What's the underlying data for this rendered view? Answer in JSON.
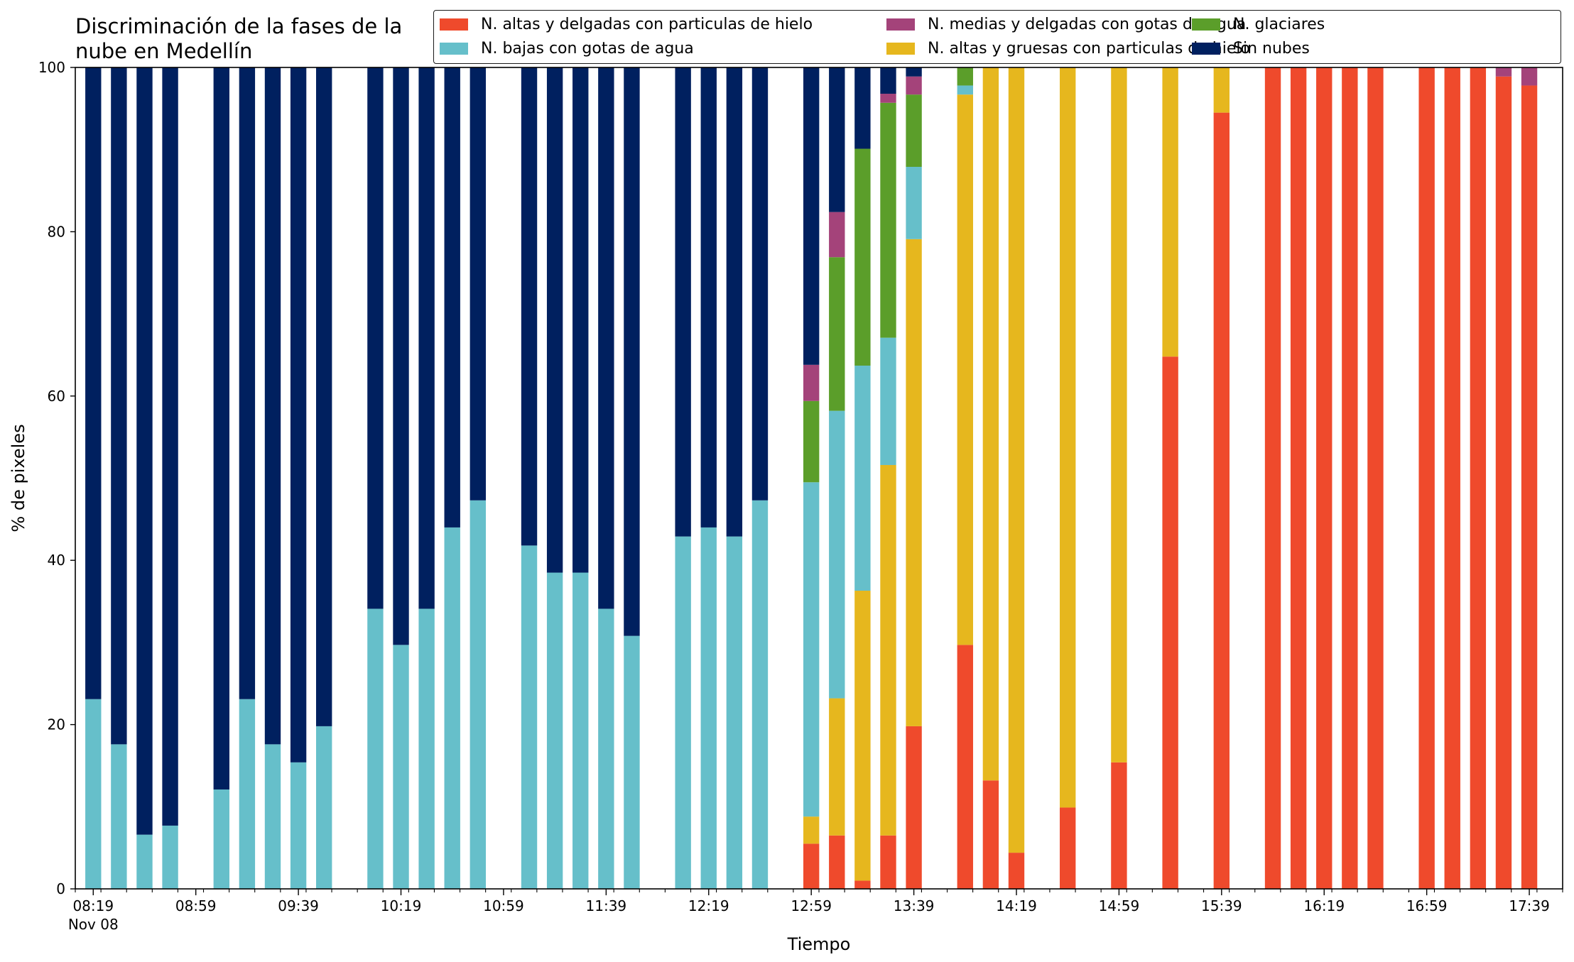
{
  "chart_data": {
    "type": "bar",
    "stacked": true,
    "title": "Discriminación de la fases de la\nnube en Medellín",
    "xlabel": "Tiempo",
    "ylabel": "% de pixeles",
    "ylim": [
      0,
      100
    ],
    "yticks": [
      0,
      20,
      40,
      60,
      80,
      100
    ],
    "xlim_minutes": [
      "08:12",
      "17:52"
    ],
    "x_tick_labels": [
      {
        "time": "08:19",
        "label": "08:19",
        "sublabel": "Nov 08"
      },
      {
        "time": "08:59",
        "label": "08:59"
      },
      {
        "time": "09:39",
        "label": "09:39"
      },
      {
        "time": "10:19",
        "label": "10:19"
      },
      {
        "time": "10:59",
        "label": "10:59"
      },
      {
        "time": "11:39",
        "label": "11:39"
      },
      {
        "time": "12:19",
        "label": "12:19"
      },
      {
        "time": "12:59",
        "label": "12:59"
      },
      {
        "time": "13:39",
        "label": "13:39"
      },
      {
        "time": "14:19",
        "label": "14:19"
      },
      {
        "time": "14:59",
        "label": "14:59"
      },
      {
        "time": "15:39",
        "label": "15:39"
      },
      {
        "time": "16:19",
        "label": "16:19"
      },
      {
        "time": "16:59",
        "label": "16:59"
      },
      {
        "time": "17:39",
        "label": "17:39"
      }
    ],
    "legend_position": "top-right",
    "grid": false,
    "x": [
      "08:19",
      "08:29",
      "08:39",
      "08:49",
      "09:09",
      "09:19",
      "09:29",
      "09:39",
      "09:49",
      "10:09",
      "10:19",
      "10:29",
      "10:39",
      "10:49",
      "11:09",
      "11:19",
      "11:29",
      "11:39",
      "11:49",
      "12:09",
      "12:19",
      "12:29",
      "12:39",
      "12:59",
      "13:09",
      "13:19",
      "13:29",
      "13:39",
      "13:59",
      "14:09",
      "14:19",
      "14:39",
      "14:59",
      "15:19",
      "15:39",
      "15:59",
      "16:09",
      "16:19",
      "16:29",
      "16:39",
      "16:59",
      "17:09",
      "17:19",
      "17:29",
      "17:39"
    ],
    "series": [
      {
        "name": "N. altas y delgadas con particulas de hielo",
        "color": "#EF4A2C",
        "values": [
          0,
          0,
          0,
          0,
          0,
          0,
          0,
          0,
          0,
          0,
          0,
          0,
          0,
          0,
          0,
          0,
          0,
          0,
          0,
          0,
          0,
          0,
          0,
          5.5,
          6.5,
          1,
          6.5,
          19.8,
          29.7,
          13.2,
          4.4,
          9.9,
          15.4,
          64.8,
          94.5,
          100,
          100,
          100,
          100,
          100,
          100,
          100,
          100,
          98.9,
          97.8
        ]
      },
      {
        "name": "N. altas y gruesas con particulas de hielo",
        "color": "#E6B71E",
        "values": [
          0,
          0,
          0,
          0,
          0,
          0,
          0,
          0,
          0,
          0,
          0,
          0,
          0,
          0,
          0,
          0,
          0,
          0,
          0,
          0,
          0,
          0,
          0,
          3.3,
          16.7,
          35.3,
          45.1,
          59.3,
          67.0,
          86.8,
          95.6,
          90.1,
          84.6,
          35.2,
          5.5,
          0,
          0,
          0,
          0,
          0,
          0,
          0,
          0,
          0,
          0
        ]
      },
      {
        "name": "N. bajas con gotas de agua",
        "color": "#66BFCA",
        "values": [
          23.1,
          17.6,
          6.6,
          7.7,
          12.1,
          23.1,
          17.6,
          15.4,
          19.8,
          34.1,
          29.7,
          34.1,
          44.0,
          47.3,
          41.8,
          38.5,
          38.5,
          34.1,
          30.8,
          42.9,
          44.0,
          42.9,
          47.3,
          40.7,
          35.0,
          27.4,
          15.5,
          8.8,
          1.1,
          0,
          0,
          0,
          0,
          0,
          0,
          0,
          0,
          0,
          0,
          0,
          0,
          0,
          0,
          0,
          0
        ]
      },
      {
        "name": "N. glaciares",
        "color": "#5B9E2A",
        "values": [
          0,
          0,
          0,
          0,
          0,
          0,
          0,
          0,
          0,
          0,
          0,
          0,
          0,
          0,
          0,
          0,
          0,
          0,
          0,
          0,
          0,
          0,
          0,
          9.9,
          18.7,
          26.4,
          28.6,
          8.8,
          2.2,
          0,
          0,
          0,
          0,
          0,
          0,
          0,
          0,
          0,
          0,
          0,
          0,
          0,
          0,
          0,
          0
        ]
      },
      {
        "name": "N. medias y delgadas con gotas de agua",
        "color": "#A4437A",
        "values": [
          0,
          0,
          0,
          0,
          0,
          0,
          0,
          0,
          0,
          0,
          0,
          0,
          0,
          0,
          0,
          0,
          0,
          0,
          0,
          0,
          0,
          0,
          0,
          4.4,
          5.5,
          0,
          1.1,
          2.2,
          0,
          0,
          0,
          0,
          0,
          0,
          0,
          0,
          0,
          0,
          0,
          0,
          0,
          0,
          0,
          1.1,
          2.2
        ]
      },
      {
        "name": "Sin nubes",
        "color": "#00205F",
        "values": [
          76.9,
          82.4,
          93.4,
          92.3,
          87.9,
          76.9,
          82.4,
          84.6,
          80.2,
          65.9,
          70.3,
          65.9,
          56.0,
          52.7,
          58.2,
          61.5,
          61.5,
          65.9,
          69.2,
          57.1,
          56.0,
          57.1,
          52.7,
          36.2,
          17.6,
          9.9,
          3.2,
          1.1,
          0,
          0,
          0,
          0,
          0,
          0,
          0,
          0,
          0,
          0,
          0,
          0,
          0,
          0,
          0,
          0,
          0
        ]
      }
    ],
    "legend_order": [
      0,
      2,
      4,
      1,
      3,
      5
    ]
  }
}
